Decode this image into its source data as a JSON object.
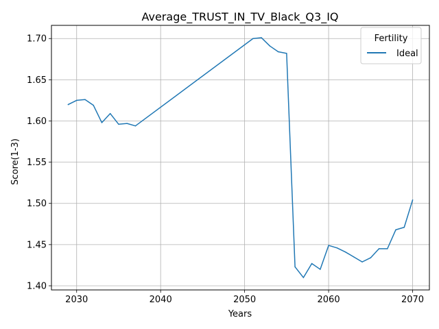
{
  "chart_data": {
    "type": "line",
    "title": "Average_TRUST_IN_TV_Black_Q3_IQ",
    "xlabel": "Years",
    "ylabel": "Score(1-3)",
    "xlim": [
      2027,
      2072
    ],
    "ylim": [
      1.395,
      1.716
    ],
    "xticks": [
      2030,
      2040,
      2050,
      2060,
      2070
    ],
    "yticks": [
      1.4,
      1.45,
      1.5,
      1.55,
      1.6,
      1.65,
      1.7
    ],
    "ytick_labels": [
      "1.40",
      "1.45",
      "1.50",
      "1.55",
      "1.60",
      "1.65",
      "1.70"
    ],
    "grid": true,
    "legend": {
      "title": "Fertility",
      "position": "top-right"
    },
    "series": [
      {
        "name": "Ideal",
        "color": "#1f77b4",
        "x": [
          2029,
          2030,
          2031,
          2032,
          2033,
          2034,
          2035,
          2036,
          2037,
          2051,
          2052,
          2053,
          2054,
          2055,
          2056,
          2057,
          2058,
          2059,
          2060,
          2061,
          2062,
          2063,
          2064,
          2065,
          2066,
          2067,
          2068,
          2069,
          2070
        ],
        "y": [
          1.62,
          1.625,
          1.626,
          1.619,
          1.598,
          1.609,
          1.596,
          1.597,
          1.594,
          1.7,
          1.701,
          1.691,
          1.684,
          1.682,
          1.423,
          1.41,
          1.427,
          1.42,
          1.449,
          1.446,
          1.441,
          1.435,
          1.429,
          1.434,
          1.445,
          1.445,
          1.468,
          1.471,
          1.504
        ]
      }
    ]
  }
}
